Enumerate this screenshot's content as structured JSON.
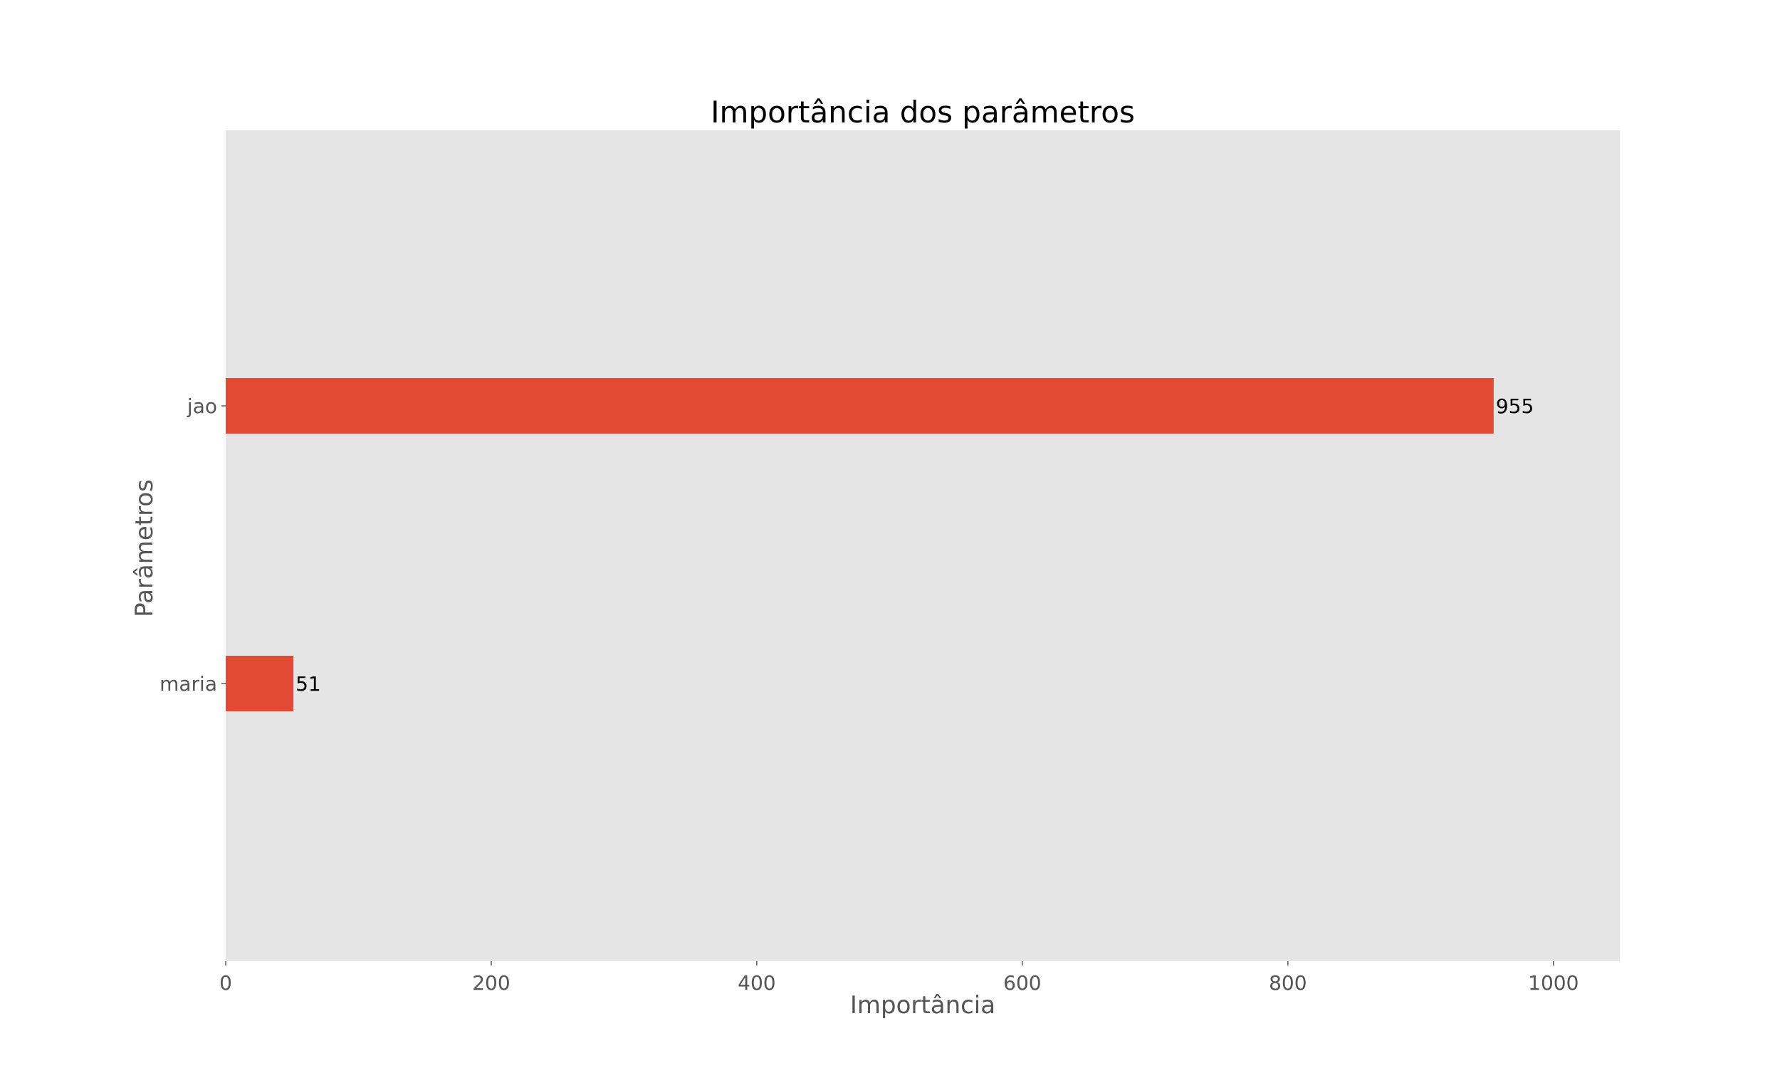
{
  "chart_data": {
    "type": "bar",
    "orientation": "horizontal",
    "title": "Importância dos parâmetros",
    "xlabel": "Importância",
    "ylabel": "Parâmetros",
    "categories": [
      "jao",
      "maria"
    ],
    "values": [
      955,
      51
    ],
    "value_labels": [
      "955",
      "51"
    ],
    "xlim": [
      0,
      1050
    ],
    "xticks": [
      0,
      200,
      400,
      600,
      800,
      1000
    ],
    "xtick_labels": [
      "0",
      "200",
      "400",
      "600",
      "800",
      "1000"
    ],
    "grid": false,
    "legend": false,
    "colors": {
      "bar": "#E24A33",
      "plot_background": "#E5E5E5",
      "figure_background": "#FFFFFF"
    }
  }
}
